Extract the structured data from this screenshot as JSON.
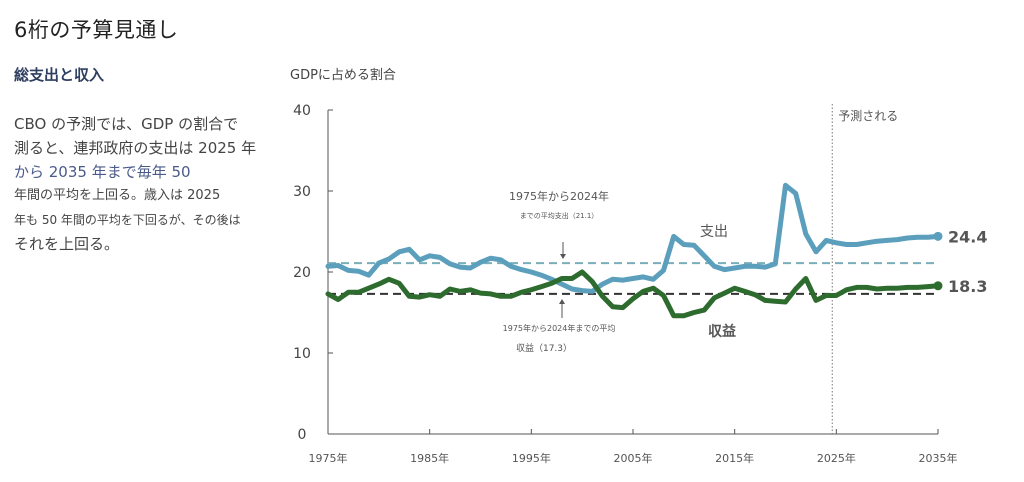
{
  "header": {
    "title": "6桁の予算見通し",
    "subtitle": "総支出と収入"
  },
  "description": {
    "lines": [
      "CBO の予測では、GDP の割合で",
      "測ると、連邦政府の支出は 2025 年",
      "から 2035 年まで毎年 50",
      "年間の平均を上回る。歳入は 2025",
      "年も 50 年間の平均を下回るが、その後は",
      "それを上回る。"
    ]
  },
  "colors": {
    "spending": "#5b9fbd",
    "revenue": "#2e6b2e",
    "spending_avg": "#7aaeb9",
    "revenue_avg": "#333333",
    "axis": "#555555"
  },
  "chart_data": {
    "type": "line",
    "title": "",
    "ylabel": "GDPに占める割合",
    "xlabel": "",
    "ylim": [
      0,
      40
    ],
    "xlim": [
      1975,
      2035
    ],
    "yticks": [
      0,
      10,
      20,
      30,
      40
    ],
    "xticks": [
      {
        "value": 1975,
        "label": "1975年"
      },
      {
        "value": 1985,
        "label": "1985年"
      },
      {
        "value": 1995,
        "label": "1995年"
      },
      {
        "value": 2005,
        "label": "2005年"
      },
      {
        "value": 2015,
        "label": "2015年"
      },
      {
        "value": 2025,
        "label": "2025年"
      },
      {
        "value": 2035,
        "label": "2035年"
      }
    ],
    "grid": false,
    "projection_start": 2024.5,
    "projection_label": "予測される",
    "x": [
      1975,
      1976,
      1977,
      1978,
      1979,
      1980,
      1981,
      1982,
      1983,
      1984,
      1985,
      1986,
      1987,
      1988,
      1989,
      1990,
      1991,
      1992,
      1993,
      1994,
      1995,
      1996,
      1997,
      1998,
      1999,
      2000,
      2001,
      2002,
      2003,
      2004,
      2005,
      2006,
      2007,
      2008,
      2009,
      2010,
      2011,
      2012,
      2013,
      2014,
      2015,
      2016,
      2017,
      2018,
      2019,
      2020,
      2021,
      2022,
      2023,
      2024,
      2025,
      2026,
      2027,
      2028,
      2029,
      2030,
      2031,
      2032,
      2033,
      2034,
      2035
    ],
    "series": [
      {
        "name": "支出",
        "label": "支出",
        "end_label": "24.4",
        "values": [
          20.7,
          20.8,
          20.2,
          20.1,
          19.6,
          21.1,
          21.6,
          22.5,
          22.8,
          21.5,
          22.0,
          21.8,
          21.0,
          20.6,
          20.5,
          21.2,
          21.7,
          21.5,
          20.7,
          20.3,
          20.0,
          19.6,
          19.1,
          18.5,
          17.9,
          17.7,
          17.6,
          18.5,
          19.1,
          19.0,
          19.2,
          19.4,
          19.1,
          20.2,
          24.4,
          23.4,
          23.3,
          22.0,
          20.7,
          20.3,
          20.5,
          20.7,
          20.7,
          20.6,
          21.0,
          30.7,
          29.7,
          24.7,
          22.5,
          23.9,
          23.6,
          23.4,
          23.4,
          23.6,
          23.8,
          23.9,
          24.0,
          24.2,
          24.3,
          24.3,
          24.4
        ]
      },
      {
        "name": "収益",
        "label": "収益",
        "end_label": "18.3",
        "values": [
          17.3,
          16.6,
          17.5,
          17.5,
          18.0,
          18.5,
          19.1,
          18.6,
          17.0,
          16.9,
          17.2,
          17.0,
          17.9,
          17.6,
          17.8,
          17.4,
          17.3,
          17.0,
          17.0,
          17.5,
          17.8,
          18.2,
          18.6,
          19.2,
          19.2,
          20.0,
          18.8,
          17.0,
          15.7,
          15.6,
          16.7,
          17.6,
          18.0,
          17.1,
          14.6,
          14.6,
          15.0,
          15.3,
          16.8,
          17.4,
          18.0,
          17.6,
          17.2,
          16.5,
          16.4,
          16.3,
          17.9,
          19.2,
          16.5,
          17.1,
          17.1,
          17.8,
          18.1,
          18.1,
          17.9,
          18.0,
          18.0,
          18.1,
          18.1,
          18.2,
          18.3
        ]
      }
    ],
    "reference_lines": [
      {
        "name": "spending_average",
        "value": 21.1,
        "label_line1": "1975年から2024年",
        "label_line2": "までの平均支出（21.1）"
      },
      {
        "name": "revenue_average",
        "value": 17.3,
        "label_line1": "1975年から2024年までの平均",
        "label_line2": "収益（17.3）"
      }
    ]
  }
}
